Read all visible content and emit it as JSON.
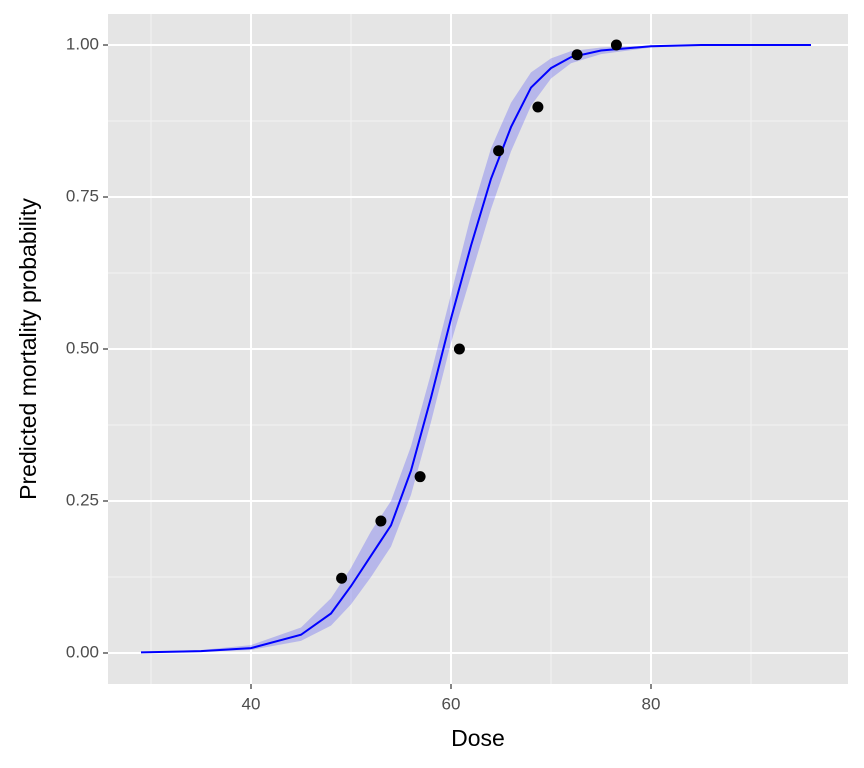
{
  "chart_data": {
    "type": "line",
    "xlabel": "Dose",
    "ylabel": "Predicted mortality probability",
    "curve": {
      "color": "#0000ff",
      "x": [
        29,
        35,
        40,
        45,
        48,
        50,
        52,
        54,
        56,
        58,
        60,
        62,
        64,
        66,
        68,
        70,
        72,
        75,
        80,
        85,
        96
      ],
      "values": [
        0.001,
        0.003,
        0.008,
        0.03,
        0.065,
        0.11,
        0.16,
        0.21,
        0.3,
        0.42,
        0.55,
        0.67,
        0.78,
        0.865,
        0.93,
        0.962,
        0.98,
        0.991,
        0.998,
        1.0,
        1.0
      ]
    },
    "band": {
      "color": "#0000ff",
      "lower": [
        0.0005,
        0.002,
        0.005,
        0.02,
        0.045,
        0.08,
        0.125,
        0.175,
        0.26,
        0.38,
        0.51,
        0.62,
        0.73,
        0.825,
        0.9,
        0.945,
        0.97,
        0.985,
        0.996,
        0.999,
        1.0
      ],
      "upper": [
        0.002,
        0.005,
        0.013,
        0.042,
        0.09,
        0.14,
        0.2,
        0.25,
        0.34,
        0.46,
        0.59,
        0.72,
        0.83,
        0.905,
        0.955,
        0.978,
        0.99,
        0.996,
        0.999,
        1.0,
        1.0
      ]
    },
    "points": {
      "color": "#000000",
      "x": [
        49.06,
        52.99,
        56.91,
        60.84,
        64.76,
        68.69,
        72.61,
        76.54
      ],
      "values": [
        0.123,
        0.217,
        0.29,
        0.5,
        0.826,
        0.898,
        0.984,
        1.0
      ]
    },
    "xlim": [
      25.7,
      99.7
    ],
    "ylim": [
      -0.051,
      1.051
    ],
    "xticks": [
      40,
      60,
      80
    ],
    "yticks": [
      {
        "value": 0,
        "label": "0.00"
      },
      {
        "value": 0.25,
        "label": "0.25"
      },
      {
        "value": 0.5,
        "label": "0.50"
      },
      {
        "value": 0.75,
        "label": "0.75"
      },
      {
        "value": 1,
        "label": "1.00"
      }
    ],
    "xminor": [
      30,
      50,
      70,
      90
    ],
    "yminor": [
      0.125,
      0.375,
      0.625,
      0.875
    ],
    "grid": true
  }
}
